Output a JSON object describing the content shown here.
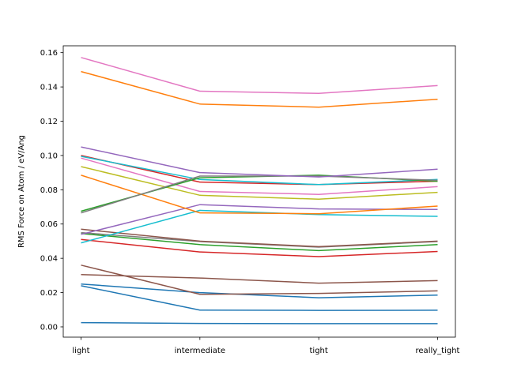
{
  "chart_data": {
    "type": "line",
    "title": "",
    "xlabel": "",
    "ylabel": "RMS Force on Atom / eV/Ang",
    "categories": [
      "light",
      "intermediate",
      "tight",
      "really_tight"
    ],
    "ylim": [
      -0.006,
      0.164
    ],
    "yticks": [
      "0.00",
      "0.02",
      "0.04",
      "0.06",
      "0.08",
      "0.10",
      "0.12",
      "0.14",
      "0.16"
    ],
    "ytick_values": [
      0.0,
      0.02,
      0.04,
      0.06,
      0.08,
      0.1,
      0.12,
      0.14,
      0.16
    ],
    "grid": false,
    "legend": "none",
    "series": [
      {
        "color": "#1f77b4",
        "values": [
          0.0025,
          0.002,
          0.0019,
          0.0019
        ]
      },
      {
        "color": "#1f77b4",
        "values": [
          0.024,
          0.0098,
          0.0096,
          0.0097
        ]
      },
      {
        "color": "#1f77b4",
        "values": [
          0.025,
          0.02,
          0.017,
          0.0185
        ]
      },
      {
        "color": "#8c564b",
        "values": [
          0.036,
          0.019,
          0.0195,
          0.021
        ]
      },
      {
        "color": "#8c564b",
        "values": [
          0.0305,
          0.0285,
          0.0255,
          0.027
        ]
      },
      {
        "color": "#d62728",
        "values": [
          0.051,
          0.0437,
          0.041,
          0.044
        ]
      },
      {
        "color": "#2ca02c",
        "values": [
          0.0545,
          0.048,
          0.0445,
          0.048
        ]
      },
      {
        "color": "#7f7f7f",
        "values": [
          0.055,
          0.0498,
          0.0465,
          0.0498
        ]
      },
      {
        "color": "#8c564b",
        "values": [
          0.057,
          0.05,
          0.0468,
          0.05
        ]
      },
      {
        "color": "#17becf",
        "values": [
          0.049,
          0.068,
          0.0655,
          0.0645
        ]
      },
      {
        "color": "#9467bd",
        "values": [
          0.054,
          0.0713,
          0.0688,
          0.0685
        ]
      },
      {
        "color": "#ff7f0e",
        "values": [
          0.0885,
          0.0665,
          0.066,
          0.0705
        ]
      },
      {
        "color": "#bcbd22",
        "values": [
          0.0935,
          0.0768,
          0.0745,
          0.0785
        ]
      },
      {
        "color": "#e377c2",
        "values": [
          0.0985,
          0.079,
          0.0773,
          0.0818
        ]
      },
      {
        "color": "#d62728",
        "values": [
          0.1,
          0.0845,
          0.083,
          0.085
        ]
      },
      {
        "color": "#17becf",
        "values": [
          0.0995,
          0.086,
          0.083,
          0.086
        ]
      },
      {
        "color": "#2ca02c",
        "values": [
          0.0675,
          0.087,
          0.0885,
          0.085
        ]
      },
      {
        "color": "#7f7f7f",
        "values": [
          0.0665,
          0.088,
          0.088,
          0.0855
        ]
      },
      {
        "color": "#9467bd",
        "values": [
          0.105,
          0.09,
          0.0875,
          0.092
        ]
      },
      {
        "color": "#ff7f0e",
        "values": [
          0.149,
          0.13,
          0.1282,
          0.1328
        ]
      },
      {
        "color": "#e377c2",
        "values": [
          0.1572,
          0.1375,
          0.1362,
          0.1408
        ]
      }
    ]
  }
}
